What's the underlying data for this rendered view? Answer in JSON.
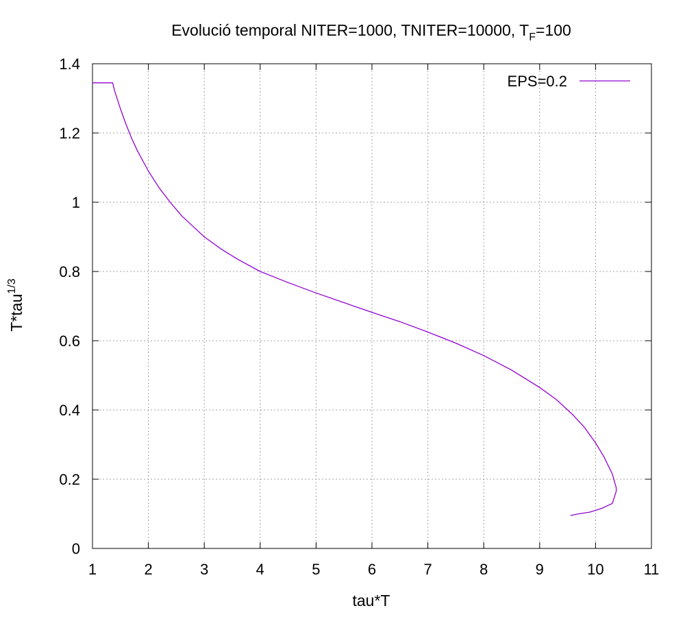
{
  "chart_data": {
    "type": "line",
    "title": {
      "main": "Evolució temporal NITER=1000, TNITER=10000, T",
      "sub": "F",
      "tail": "=100"
    },
    "xlabel": "tau*T",
    "ylabel": {
      "base": "T*tau",
      "sup": "1/3"
    },
    "xlim": [
      1,
      11
    ],
    "ylim": [
      0,
      1.4
    ],
    "xticks": [
      1,
      2,
      3,
      4,
      5,
      6,
      7,
      8,
      9,
      10,
      11
    ],
    "xtick_labels": [
      "1",
      "2",
      "3",
      "4",
      "5",
      "6",
      "7",
      "8",
      "9",
      "10",
      "11"
    ],
    "yticks": [
      0,
      0.2,
      0.4,
      0.6,
      0.8,
      1.0,
      1.2,
      1.4
    ],
    "ytick_labels": [
      "0",
      "0.2",
      "0.4",
      "0.6",
      "0.8",
      "1",
      "1.2",
      "1.4"
    ],
    "grid": true,
    "legend_position": "top-right",
    "series": [
      {
        "name": "EPS=0.2",
        "color": "#9400d3",
        "x": [
          1.0,
          1.36,
          1.4,
          1.5,
          1.6,
          1.7,
          1.8,
          2.0,
          2.2,
          2.4,
          2.6,
          2.8,
          3.0,
          3.3,
          3.6,
          4.0,
          4.5,
          5.0,
          5.5,
          6.0,
          6.5,
          7.0,
          7.5,
          8.0,
          8.5,
          9.0,
          9.3,
          9.6,
          9.8,
          10.0,
          10.15,
          10.3,
          10.37,
          10.37,
          10.3,
          10.1,
          9.9,
          9.7,
          9.55
        ],
        "y": [
          1.345,
          1.345,
          1.32,
          1.27,
          1.225,
          1.185,
          1.15,
          1.09,
          1.04,
          0.998,
          0.96,
          0.93,
          0.9,
          0.865,
          0.835,
          0.8,
          0.768,
          0.738,
          0.71,
          0.682,
          0.655,
          0.625,
          0.593,
          0.557,
          0.515,
          0.465,
          0.43,
          0.385,
          0.35,
          0.305,
          0.265,
          0.215,
          0.175,
          0.165,
          0.13,
          0.115,
          0.105,
          0.1,
          0.095
        ]
      }
    ]
  }
}
